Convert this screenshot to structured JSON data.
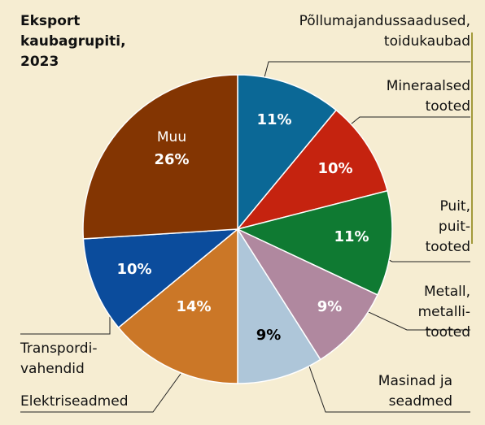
{
  "chart_data": {
    "type": "pie",
    "title": "Eksport kaubagrupiti, 2023",
    "categories": [
      "Põllumajandussaadused, toidukaubad",
      "Mineraalsed tooted",
      "Puit, puit-tooted",
      "Metall, metalli-tooted",
      "Masinad ja seadmed",
      "Elektriseadmed",
      "Transpordi-vahendid",
      "Muu"
    ],
    "values": [
      11,
      10,
      11,
      9,
      9,
      14,
      10,
      26
    ],
    "value_labels": [
      "11%",
      "10%",
      "11%",
      "9%",
      "9%",
      "14%",
      "10%",
      "26%"
    ],
    "colors": [
      "#0b6896",
      "#c5230f",
      "#0f7a32",
      "#b0889f",
      "#aec6d9",
      "#cb7727",
      "#0b4c9c",
      "#833502"
    ],
    "label_colors": [
      "#ffffff",
      "#ffffff",
      "#ffffff",
      "#ffffff",
      "#000000",
      "#ffffff",
      "#ffffff",
      "#ffffff"
    ]
  }
}
